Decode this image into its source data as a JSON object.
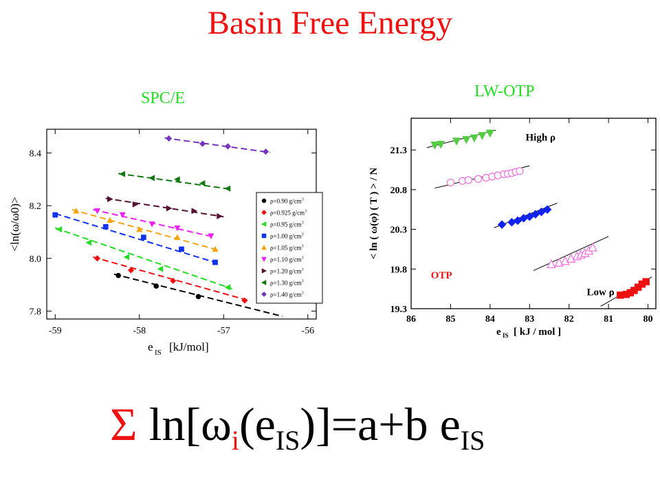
{
  "slide": {
    "title": "Basin Free Energy",
    "formula": {
      "sigma": "Σ",
      "part1": " ln[",
      "omega": "ω",
      "sub_i": "i",
      "part2": "(e",
      "sub_is1": "IS",
      "part3": ")]=a+b e",
      "sub_is2": "IS"
    }
  },
  "chart_data": [
    {
      "type": "line",
      "title": "SPC/E",
      "title_color": "#22dd22",
      "xlabel_main": "e",
      "xlabel_sub": "IS",
      "xlabel_unit": "[kJ/mol]",
      "ylabel": "<ln(ω/ω0)>",
      "xlim": [
        -59.1,
        -55.9
      ],
      "ylim": [
        7.77,
        8.49
      ],
      "xticks": [
        -59,
        -58,
        -57,
        -56
      ],
      "yticks": [
        7.8,
        8.0,
        8.2,
        8.4
      ],
      "legend_position": "bottom-right",
      "series": [
        {
          "name": "ρ=0.90  g/cm3",
          "color": "#000000",
          "marker": "circle",
          "x": [
            -58.25,
            -57.8,
            -57.3
          ],
          "y": [
            7.935,
            7.895,
            7.855
          ],
          "fit": [
            [
              -58.3,
              7.94
            ],
            [
              -56.3,
              7.78
            ]
          ]
        },
        {
          "name": "ρ=0.925 g/cm3",
          "color": "#ee1111",
          "marker": "diamond",
          "x": [
            -58.5,
            -58.1,
            -57.6,
            -56.75
          ],
          "y": [
            8.0,
            7.955,
            7.915,
            7.84
          ],
          "fit": [
            [
              -58.55,
              8.005
            ],
            [
              -56.7,
              7.84
            ]
          ]
        },
        {
          "name": "ρ=0.95  g/cm3",
          "color": "#22dd22",
          "marker": "triangle-left",
          "x": [
            -58.95,
            -58.6,
            -58.15,
            -57.75,
            -56.95
          ],
          "y": [
            8.11,
            8.06,
            8.005,
            7.96,
            7.89
          ],
          "fit": [
            [
              -59.0,
              8.115
            ],
            [
              -56.9,
              7.885
            ]
          ]
        },
        {
          "name": "ρ=1.00  g/cm3",
          "color": "#1133ee",
          "marker": "square",
          "x": [
            -59.0,
            -58.4,
            -57.95,
            -57.5,
            -57.1
          ],
          "y": [
            8.165,
            8.12,
            8.08,
            8.035,
            7.985
          ],
          "fit": [
            [
              -59.0,
              8.17
            ],
            [
              -57.05,
              7.98
            ]
          ]
        },
        {
          "name": "ρ=1.05  g/cm3",
          "color": "#f5a511",
          "marker": "triangle-up",
          "x": [
            -58.75,
            -58.35,
            -58.0,
            -57.55,
            -57.1
          ],
          "y": [
            8.18,
            8.145,
            8.11,
            8.08,
            8.035
          ],
          "fit": [
            [
              -58.8,
              8.185
            ],
            [
              -57.05,
              8.03
            ]
          ]
        },
        {
          "name": "ρ=1.10  g/cm3",
          "color": "#ee22ee",
          "marker": "triangle-down",
          "x": [
            -58.5,
            -58.2,
            -57.85,
            -57.55,
            -57.15
          ],
          "y": [
            8.18,
            8.165,
            8.13,
            8.115,
            8.085
          ],
          "fit": [
            [
              -58.55,
              8.185
            ],
            [
              -57.1,
              8.08
            ]
          ]
        },
        {
          "name": "ρ=1.20  g/cm3",
          "color": "#551133",
          "marker": "triangle-right",
          "x": [
            -58.35,
            -58.05,
            -57.65,
            -57.35,
            -57.05
          ],
          "y": [
            8.225,
            8.205,
            8.19,
            8.18,
            8.16
          ],
          "fit": [
            [
              -58.4,
              8.228
            ],
            [
              -57.0,
              8.158
            ]
          ]
        },
        {
          "name": "ρ=1.30  g/cm3",
          "color": "#117711",
          "marker": "triangle-left",
          "x": [
            -58.2,
            -57.85,
            -57.55,
            -57.25,
            -56.95
          ],
          "y": [
            8.32,
            8.305,
            8.3,
            8.285,
            8.265
          ],
          "fit": [
            [
              -58.25,
              8.322
            ],
            [
              -56.9,
              8.262
            ]
          ]
        },
        {
          "name": "ρ=1.40  g/cm3",
          "color": "#7733bb",
          "marker": "diamond",
          "x": [
            -57.65,
            -57.25,
            -56.95,
            -56.5
          ],
          "y": [
            8.455,
            8.435,
            8.425,
            8.405
          ],
          "fit": [
            [
              -57.7,
              8.457
            ],
            [
              -56.45,
              8.402
            ]
          ]
        }
      ]
    },
    {
      "type": "scatter",
      "title": "LW-OTP",
      "title_color": "#22dd22",
      "xlabel_main": "e",
      "xlabel_sub": "IS",
      "xlabel_unit": "[ kJ / mol ]",
      "ylabel": "< ln ( ω(φ) ( T ) > / N",
      "x_reversed": true,
      "xlim": [
        86,
        79.8
      ],
      "ylim": [
        19.3,
        21.7
      ],
      "xticks": [
        86,
        85,
        84,
        83,
        82,
        81,
        80
      ],
      "yticks": [
        19.3,
        19.8,
        20.3,
        20.8,
        21.3
      ],
      "annotations": [
        {
          "text": "High ρ",
          "x": 83.1,
          "y": 21.42,
          "color": "#000000"
        },
        {
          "text": "OTP",
          "x": 85.5,
          "y": 19.68,
          "color": "#ee1111"
        },
        {
          "text": "Low ρ",
          "x": 81.55,
          "y": 19.47,
          "color": "#000000"
        }
      ],
      "series": [
        {
          "name": "",
          "color": "#55cc44",
          "marker": "triangle-down-filled",
          "x": [
            85.4,
            85.25,
            84.85,
            84.6,
            84.4,
            84.2,
            84.0
          ],
          "y": [
            21.36,
            21.37,
            21.41,
            21.43,
            21.45,
            21.48,
            21.51
          ],
          "fit": [
            [
              85.6,
              21.33
            ],
            [
              83.85,
              21.55
            ]
          ]
        },
        {
          "name": "",
          "color": "#ee77dd",
          "marker": "circle-open",
          "x": [
            85.0,
            84.7,
            84.55,
            84.3,
            84.1,
            83.95,
            83.8,
            83.65,
            83.55,
            83.45,
            83.35,
            83.25
          ],
          "y": [
            20.89,
            20.91,
            20.92,
            20.935,
            20.95,
            20.965,
            20.98,
            20.995,
            21.0,
            21.01,
            21.025,
            21.035
          ],
          "fit": [
            [
              85.4,
              20.82
            ],
            [
              83.0,
              21.1
            ]
          ]
        },
        {
          "name": "",
          "color": "#1122ee",
          "marker": "diamond-filled",
          "x": [
            83.7,
            83.45,
            83.3,
            83.15,
            83.0,
            82.85,
            82.7,
            82.55
          ],
          "y": [
            20.36,
            20.39,
            20.41,
            20.44,
            20.46,
            20.49,
            20.52,
            20.55
          ],
          "fit": [
            [
              83.9,
              20.32
            ],
            [
              82.3,
              20.63
            ]
          ]
        },
        {
          "name": "",
          "color": "#ee77dd",
          "marker": "triangle-up-open",
          "x": [
            82.45,
            82.25,
            82.1,
            81.95,
            81.8,
            81.7,
            81.6,
            81.5,
            81.4
          ],
          "y": [
            19.86,
            19.88,
            19.9,
            19.93,
            19.96,
            19.98,
            20.0,
            20.03,
            20.07
          ],
          "fit": [
            [
              82.9,
              19.78
            ],
            [
              81.0,
              20.21
            ]
          ]
        },
        {
          "name": "",
          "color": "#ee1111",
          "marker": "square-filled",
          "x": [
            80.7,
            80.55,
            80.45,
            80.35,
            80.25,
            80.15,
            80.05
          ],
          "y": [
            19.47,
            19.48,
            19.5,
            19.53,
            19.57,
            19.61,
            19.64
          ],
          "fit": [
            [
              81.2,
              19.33
            ],
            [
              79.9,
              19.7
            ]
          ]
        }
      ]
    }
  ]
}
